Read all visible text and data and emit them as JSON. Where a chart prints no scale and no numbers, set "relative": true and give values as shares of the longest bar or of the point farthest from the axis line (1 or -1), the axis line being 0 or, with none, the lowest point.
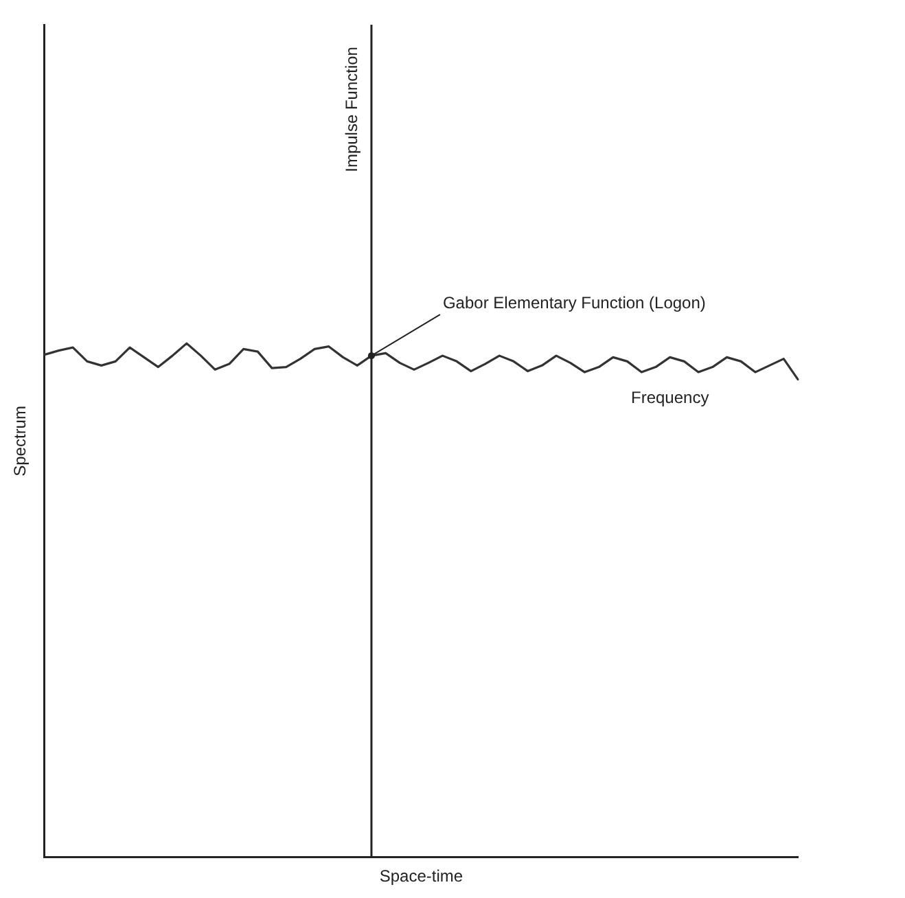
{
  "chart_data": {
    "type": "line",
    "relative": true,
    "xlabel": "Space-time",
    "ylabel": "Spectrum",
    "legend": false,
    "grid": false,
    "marker": "none",
    "line_style": "solid",
    "categories": [
      null,
      null,
      null,
      null,
      null,
      null,
      null,
      null,
      null,
      null,
      null,
      null,
      null,
      null,
      null,
      null,
      null,
      null,
      null,
      null,
      null,
      null,
      null,
      null,
      null,
      null,
      null,
      null,
      null,
      null,
      null,
      null,
      null,
      null,
      null,
      null,
      null,
      null,
      null,
      null,
      null,
      null,
      null,
      null,
      null,
      null,
      null,
      null,
      null,
      null,
      null,
      null,
      null,
      null
    ],
    "series": [
      {
        "name": "Frequency",
        "color": "#333333",
        "values": [
          0.978,
          0.986,
          0.992,
          0.965,
          0.957,
          0.965,
          0.992,
          0.973,
          0.954,
          0.976,
          1,
          0.976,
          0.949,
          0.96,
          0.989,
          0.984,
          0.952,
          0.954,
          0.97,
          0.989,
          0.994,
          0.973,
          0.957,
          0.976,
          0.981,
          0.962,
          0.949,
          0.962,
          0.976,
          0.965,
          0.946,
          0.96,
          0.976,
          0.965,
          0.946,
          0.957,
          0.976,
          0.962,
          0.944,
          0.954,
          0.973,
          0.965,
          0.944,
          0.954,
          0.973,
          0.965,
          0.944,
          0.954,
          0.973,
          0.965,
          0.944,
          0.957,
          0.97,
          0.93
        ]
      }
    ],
    "annotations": [
      "Impulse Function",
      "Gabor Elementary Function (Logon)"
    ]
  }
}
